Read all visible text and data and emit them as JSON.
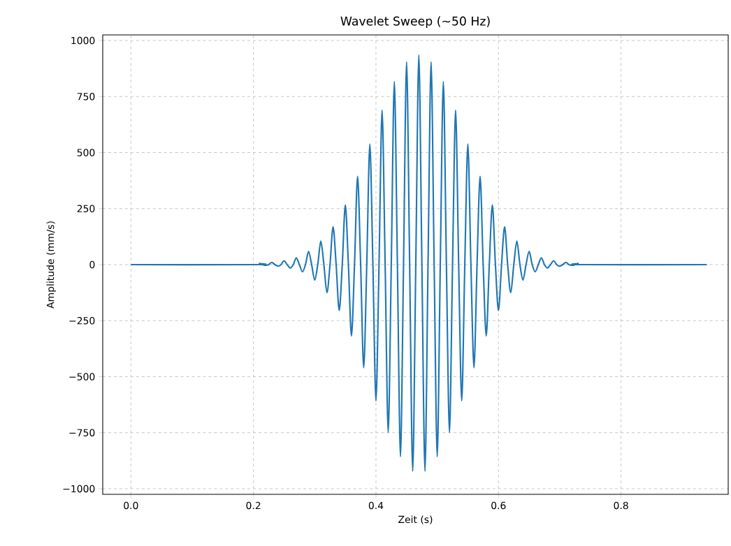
{
  "chart_data": {
    "type": "line",
    "title": "Wavelet Sweep (~50 Hz)",
    "xlabel": "Zeit (s)",
    "ylabel": "Amplitude (mm/s)",
    "x": [
      0,
      0.205,
      0.21,
      0.215,
      0.22,
      0.225,
      0.23,
      0.235,
      0.24,
      0.245,
      0.25,
      0.255,
      0.26,
      0.265,
      0.27,
      0.275,
      0.28,
      0.285,
      0.29,
      0.295,
      0.3,
      0.305,
      0.31,
      0.315,
      0.32,
      0.325,
      0.33,
      0.335,
      0.34,
      0.345,
      0.35,
      0.355,
      0.36,
      0.365,
      0.37,
      0.375,
      0.38,
      0.385,
      0.39,
      0.395,
      0.4,
      0.405,
      0.41,
      0.415,
      0.42,
      0.425,
      0.43,
      0.435,
      0.44,
      0.445,
      0.45,
      0.455,
      0.46,
      0.465,
      0.47,
      0.475,
      0.48,
      0.485,
      0.49,
      0.495,
      0.5,
      0.505,
      0.51,
      0.515,
      0.52,
      0.525,
      0.53,
      0.535,
      0.54,
      0.545,
      0.55,
      0.555,
      0.56,
      0.565,
      0.57,
      0.575,
      0.58,
      0.585,
      0.59,
      0.595,
      0.6,
      0.605,
      0.61,
      0.615,
      0.62,
      0.625,
      0.63,
      0.635,
      0.64,
      0.645,
      0.65,
      0.655,
      0.66,
      0.665,
      0.67,
      0.675,
      0.68,
      0.685,
      0.69,
      0.695,
      0.7,
      0.705,
      0.71,
      0.715,
      0.72,
      0.725,
      0.73,
      0.735,
      0.94
    ],
    "series": [
      {
        "color": "#1f77b4",
        "values": [
          0,
          0,
          5,
          0,
          -3,
          0,
          10,
          0,
          -7,
          0,
          17,
          0,
          -15,
          0,
          30,
          0,
          -32,
          0,
          59,
          0,
          -69,
          0,
          105,
          0,
          -125,
          0,
          169,
          0,
          -205,
          0,
          266,
          0,
          -318,
          0,
          394,
          0,
          -460,
          0,
          538,
          0,
          -608,
          0,
          689,
          0,
          -749,
          0,
          817,
          0,
          -857,
          0,
          905,
          0,
          -922,
          0,
          935,
          0,
          -922,
          0,
          905,
          0,
          -857,
          0,
          817,
          0,
          -749,
          0,
          689,
          0,
          -608,
          0,
          538,
          0,
          -460,
          0,
          394,
          0,
          -318,
          0,
          266,
          0,
          -205,
          0,
          169,
          0,
          -125,
          0,
          105,
          0,
          -69,
          0,
          59,
          0,
          -32,
          0,
          30,
          0,
          -15,
          0,
          17,
          0,
          -7,
          0,
          10,
          0,
          -3,
          0,
          5,
          0,
          0
        ]
      }
    ],
    "xlim": [
      -0.046,
      0.975
    ],
    "ylim": [
      -1025,
      1025
    ],
    "xticks": [
      {
        "value": 0,
        "label": "0.0"
      },
      0.2,
      0.4,
      0.6,
      0.8
    ],
    "yticks": [
      {
        "value": -1000,
        "label": "−1000"
      },
      {
        "value": -750,
        "label": "−750"
      },
      {
        "value": -500,
        "label": "−500"
      },
      {
        "value": -250,
        "label": "−250"
      },
      0,
      250,
      500,
      750,
      1000
    ],
    "grid": true
  }
}
